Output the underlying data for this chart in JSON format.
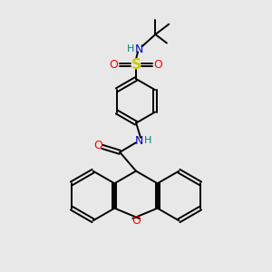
{
  "bg_color": "#e8e8e8",
  "bond_color": "#000000",
  "o_color": "#ff0000",
  "n_color": "#0000cc",
  "s_color": "#cccc00",
  "h_color": "#008080",
  "line_width": 1.4,
  "xlim": [
    0,
    10
  ],
  "ylim": [
    0,
    10
  ]
}
